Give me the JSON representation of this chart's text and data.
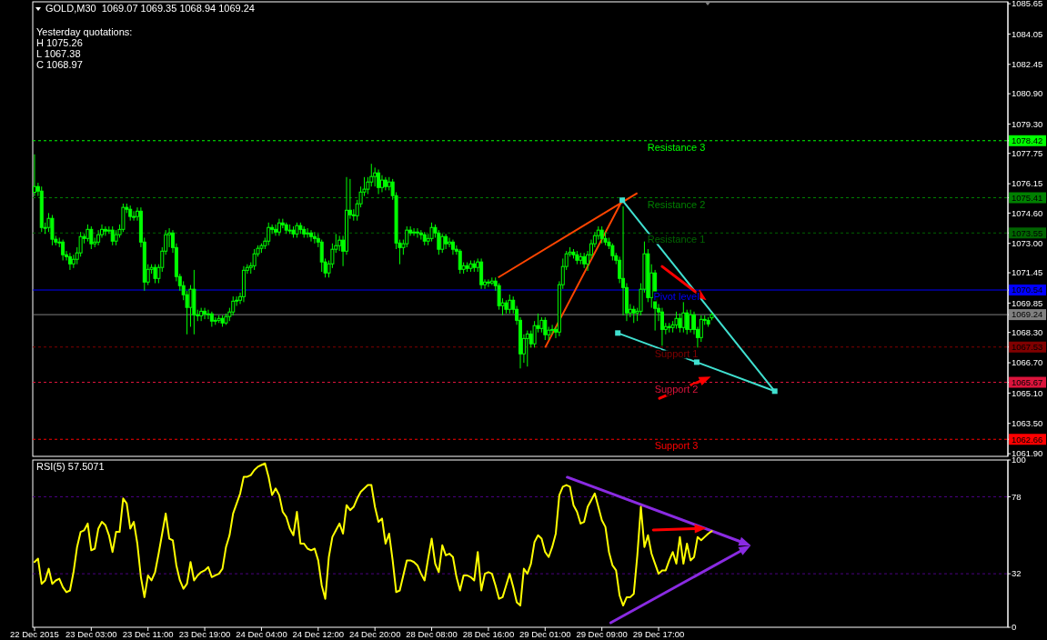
{
  "chart_data": [
    {
      "type": "candlestick",
      "title": "GOLD,M30  1069.07 1069.35 1068.94 1069.24",
      "annotations": [
        "Yesterday quotations:",
        "H 1075.26",
        "L 1067.38",
        "C 1068.97"
      ],
      "color": "#00ff00",
      "ylim": [
        1061.76,
        1085.75
      ],
      "tick_labels": "y",
      "categories": [
        null,
        null,
        null,
        null,
        null,
        null,
        null,
        null,
        null,
        null,
        null,
        null,
        null,
        null,
        null,
        null,
        null,
        null,
        null,
        null,
        null,
        null,
        null,
        null,
        null,
        null,
        null,
        null,
        null,
        null,
        null,
        null,
        null,
        null,
        null,
        null,
        null,
        null,
        null,
        null,
        null,
        null,
        null,
        null,
        null,
        null,
        null,
        null,
        null,
        null,
        null,
        null,
        null,
        null,
        null,
        null,
        null,
        null,
        null,
        null,
        null,
        null,
        null,
        null,
        null,
        null,
        null,
        null,
        null,
        null,
        null,
        null,
        null,
        null,
        null,
        null,
        null,
        null,
        null,
        null,
        null,
        null,
        null,
        null,
        null,
        null,
        null,
        null,
        null,
        null,
        null,
        null,
        null,
        null,
        null,
        null,
        null,
        null,
        null,
        null,
        null,
        null,
        null,
        null,
        null,
        null,
        null,
        null,
        null,
        null,
        null,
        null,
        null,
        null,
        null,
        null,
        null,
        null,
        null,
        null,
        null,
        null,
        null,
        null,
        null,
        null,
        null,
        null,
        null,
        null,
        null,
        null,
        null,
        null,
        null,
        null,
        null,
        null,
        null,
        null,
        null,
        null,
        null,
        null,
        null,
        null,
        null,
        null,
        null,
        null,
        null,
        null,
        null,
        null,
        null,
        null,
        null,
        null,
        null,
        null,
        null,
        null,
        null,
        null,
        null,
        null,
        null,
        null,
        null,
        null,
        null,
        null,
        null,
        null,
        null,
        null,
        null,
        null,
        null,
        null,
        null,
        null,
        null,
        null,
        null,
        null,
        null,
        null,
        null,
        null,
        null,
        null,
        null,
        null,
        null,
        null,
        null,
        null,
        null,
        null,
        null,
        null,
        null,
        null,
        null,
        null,
        null,
        null,
        null,
        null,
        null,
        null,
        null,
        null,
        null,
        null,
        null,
        null,
        null,
        null,
        null,
        null,
        null,
        null,
        null,
        null,
        null,
        null,
        null,
        null,
        null,
        null,
        null,
        null,
        null,
        null,
        null,
        null,
        null,
        null,
        null,
        null,
        null,
        null,
        null,
        null,
        null,
        null,
        null,
        null,
        null,
        null,
        null,
        null,
        null,
        null,
        null,
        null,
        null,
        null,
        null,
        null,
        null,
        null,
        null,
        null,
        null,
        null,
        null,
        null,
        null,
        null,
        null,
        null,
        null
      ],
      "yticks": [
        1085.65,
        1084.05,
        1082.45,
        {
          "value": 1080.9,
          "label": "1080.90"
        },
        {
          "value": 1079.3,
          "label": "1079.30"
        },
        1078.42,
        1077.75,
        1076.15,
        1075.41,
        {
          "value": 1074.6,
          "label": "1074.60"
        },
        1073.55,
        {
          "value": 1073,
          "label": "1073.00"
        },
        1071.45,
        1070.54,
        1069.85,
        1069.24,
        {
          "value": 1068.3,
          "label": "1068.30"
        },
        1067.53,
        {
          "value": 1066.7,
          "label": "1066.70"
        },
        1065.67,
        {
          "value": 1065.1,
          "label": "1065.10"
        },
        {
          "value": 1063.5,
          "label": "1063.50"
        },
        1062.66,
        {
          "value": 1061.9,
          "label": "1061.90"
        }
      ],
      "ohlc": [
        [
          1075.7,
          1077.7,
          1075.5,
          1076.0
        ],
        [
          1076.0,
          1076.2,
          1075.5,
          1075.76
        ],
        [
          1075.76,
          1076.0,
          1073.6,
          1073.84
        ],
        [
          1073.84,
          1074.1,
          1073.5,
          1073.84
        ],
        [
          1073.84,
          1074.6,
          1073.6,
          1074.32
        ],
        [
          1074.32,
          1074.5,
          1072.9,
          1073.22
        ],
        [
          1073.22,
          1073.4,
          1072.9,
          1073.07
        ],
        [
          1073.07,
          1073.3,
          1072.8,
          1073.07
        ],
        [
          1073.07,
          1073.2,
          1072.1,
          1072.4
        ],
        [
          1072.4,
          1072.6,
          1072.1,
          1072.3
        ],
        [
          1072.3,
          1072.5,
          1071.6,
          1071.92
        ],
        [
          1071.92,
          1072.4,
          1071.7,
          1072.16
        ],
        [
          1072.16,
          1072.8,
          1071.9,
          1072.5
        ],
        [
          1072.5,
          1073.6,
          1072.3,
          1073.36
        ],
        [
          1073.36,
          1073.5,
          1073.0,
          1073.26
        ],
        [
          1073.26,
          1074.0,
          1073.1,
          1073.74
        ],
        [
          1073.74,
          1073.9,
          1072.7,
          1072.98
        ],
        [
          1072.98,
          1073.3,
          1072.8,
          1073.07
        ],
        [
          1073.07,
          1073.7,
          1072.9,
          1073.46
        ],
        [
          1073.46,
          1074.0,
          1073.3,
          1073.74
        ],
        [
          1073.74,
          1073.9,
          1073.4,
          1073.65
        ],
        [
          1073.65,
          1073.9,
          1073.5,
          1073.7
        ],
        [
          1073.7,
          1073.9,
          1072.9,
          1073.12
        ],
        [
          1073.12,
          1073.7,
          1072.9,
          1073.46
        ],
        [
          1073.46,
          1074.0,
          1073.3,
          1073.74
        ],
        [
          1073.74,
          1075.1,
          1073.6,
          1074.9
        ],
        [
          1074.9,
          1075.1,
          1074.6,
          1074.8
        ],
        [
          1074.8,
          1075.0,
          1074.2,
          1074.42
        ],
        [
          1074.42,
          1074.7,
          1074.2,
          1074.42
        ],
        [
          1074.42,
          1074.9,
          1074.2,
          1074.7
        ],
        [
          1074.7,
          1074.9,
          1072.8,
          1073.07
        ],
        [
          1073.07,
          1073.3,
          1070.5,
          1070.96
        ],
        [
          1070.96,
          1071.9,
          1070.8,
          1071.63
        ],
        [
          1071.63,
          1071.9,
          1071.4,
          1071.73
        ],
        [
          1071.73,
          1071.9,
          1070.9,
          1071.15
        ],
        [
          1071.15,
          1071.9,
          1070.9,
          1071.73
        ],
        [
          1071.73,
          1072.8,
          1071.5,
          1072.59
        ],
        [
          1072.59,
          1073.7,
          1072.4,
          1073.46
        ],
        [
          1073.46,
          1073.8,
          1072.8,
          1073.55
        ],
        [
          1073.55,
          1073.7,
          1072.5,
          1072.78
        ],
        [
          1072.78,
          1073.0,
          1071.0,
          1071.25
        ],
        [
          1071.25,
          1071.4,
          1070.5,
          1070.77
        ],
        [
          1070.77,
          1071.0,
          1070.0,
          1070.29
        ],
        [
          1070.29,
          1070.5,
          1068.2,
          1069.62
        ],
        [
          1069.62,
          1070.8,
          1068.6,
          1070.58
        ],
        [
          1070.58,
          1071.6,
          1068.2,
          1069.23
        ],
        [
          1069.23,
          1069.5,
          1068.9,
          1069.18
        ],
        [
          1069.18,
          1069.6,
          1068.9,
          1069.42
        ],
        [
          1069.42,
          1069.6,
          1069.0,
          1069.28
        ],
        [
          1069.28,
          1069.5,
          1069.0,
          1069.28
        ],
        [
          1069.28,
          1069.4,
          1068.6,
          1068.9
        ],
        [
          1068.9,
          1069.1,
          1068.7,
          1068.94
        ],
        [
          1068.94,
          1069.2,
          1068.8,
          1069.04
        ],
        [
          1069.04,
          1069.2,
          1068.6,
          1068.8
        ],
        [
          1068.8,
          1069.3,
          1068.7,
          1069.14
        ],
        [
          1069.14,
          1069.6,
          1068.9,
          1069.38
        ],
        [
          1069.38,
          1070.2,
          1069.2,
          1069.95
        ],
        [
          1069.95,
          1070.2,
          1069.7,
          1070.0
        ],
        [
          1070.0,
          1070.4,
          1069.8,
          1070.19
        ],
        [
          1070.19,
          1071.8,
          1069.9,
          1071.58
        ],
        [
          1071.58,
          1071.9,
          1071.4,
          1071.73
        ],
        [
          1071.73,
          1072.0,
          1071.4,
          1071.82
        ],
        [
          1071.82,
          1072.7,
          1071.6,
          1072.45
        ],
        [
          1072.45,
          1072.9,
          1072.3,
          1072.74
        ],
        [
          1072.74,
          1073.0,
          1072.5,
          1072.88
        ],
        [
          1072.88,
          1073.3,
          1072.7,
          1073.12
        ],
        [
          1073.12,
          1074.1,
          1072.9,
          1073.84
        ],
        [
          1073.84,
          1074.0,
          1073.5,
          1073.74
        ],
        [
          1073.74,
          1074.0,
          1073.4,
          1073.6
        ],
        [
          1073.6,
          1074.3,
          1073.4,
          1074.08
        ],
        [
          1074.08,
          1074.3,
          1073.8,
          1073.98
        ],
        [
          1073.98,
          1074.1,
          1073.5,
          1073.7
        ],
        [
          1073.7,
          1074.0,
          1073.5,
          1073.7
        ],
        [
          1073.7,
          1073.9,
          1073.3,
          1073.5
        ],
        [
          1073.5,
          1074.1,
          1073.3,
          1073.94
        ],
        [
          1073.94,
          1074.1,
          1073.5,
          1073.74
        ],
        [
          1073.74,
          1073.9,
          1073.3,
          1073.5
        ],
        [
          1073.5,
          1073.8,
          1073.3,
          1073.55
        ],
        [
          1073.55,
          1073.7,
          1073.1,
          1073.36
        ],
        [
          1073.36,
          1073.6,
          1073.0,
          1073.26
        ],
        [
          1073.26,
          1073.5,
          1072.8,
          1073.07
        ],
        [
          1073.07,
          1073.2,
          1071.5,
          1072.02
        ],
        [
          1072.02,
          1072.2,
          1071.2,
          1071.44
        ],
        [
          1071.44,
          1072.1,
          1071.2,
          1071.92
        ],
        [
          1071.92,
          1073.0,
          1071.7,
          1072.69
        ],
        [
          1072.69,
          1073.5,
          1072.5,
          1072.88
        ],
        [
          1072.88,
          1073.4,
          1072.6,
          1073.17
        ],
        [
          1073.17,
          1073.4,
          1071.8,
          1072.59
        ],
        [
          1072.59,
          1076.5,
          1072.4,
          1074.75
        ],
        [
          1074.75,
          1076.4,
          1074.3,
          1074.51
        ],
        [
          1074.51,
          1074.8,
          1074.2,
          1074.46
        ],
        [
          1074.46,
          1075.3,
          1074.2,
          1075.09
        ],
        [
          1075.09,
          1076.0,
          1074.9,
          1075.71
        ],
        [
          1075.71,
          1076.5,
          1075.5,
          1075.86
        ],
        [
          1075.86,
          1076.5,
          1075.6,
          1076.24
        ],
        [
          1076.24,
          1077.2,
          1076.0,
          1076.53
        ],
        [
          1076.53,
          1077.0,
          1076.0,
          1076.72
        ],
        [
          1076.72,
          1076.9,
          1075.6,
          1075.95
        ],
        [
          1075.95,
          1076.6,
          1075.7,
          1076.34
        ],
        [
          1076.34,
          1076.5,
          1075.8,
          1076.0
        ],
        [
          1076.0,
          1076.5,
          1075.8,
          1076.24
        ],
        [
          1076.24,
          1076.4,
          1075.3,
          1075.52
        ],
        [
          1075.52,
          1075.7,
          1072.7,
          1073.02
        ],
        [
          1073.02,
          1073.2,
          1071.9,
          1072.78
        ],
        [
          1072.78,
          1073.2,
          1072.4,
          1072.98
        ],
        [
          1072.98,
          1073.9,
          1072.8,
          1073.7
        ],
        [
          1073.7,
          1073.9,
          1073.4,
          1073.55
        ],
        [
          1073.55,
          1073.8,
          1073.4,
          1073.6
        ],
        [
          1073.6,
          1073.8,
          1073.3,
          1073.55
        ],
        [
          1073.55,
          1073.7,
          1073.2,
          1073.46
        ],
        [
          1073.46,
          1073.6,
          1072.9,
          1073.12
        ],
        [
          1073.12,
          1073.5,
          1072.9,
          1073.26
        ],
        [
          1073.26,
          1074.1,
          1073.1,
          1073.84
        ],
        [
          1073.84,
          1074.0,
          1073.3,
          1073.55
        ],
        [
          1073.55,
          1073.7,
          1072.4,
          1072.69
        ],
        [
          1072.69,
          1073.5,
          1072.5,
          1073.36
        ],
        [
          1073.36,
          1073.5,
          1072.7,
          1072.98
        ],
        [
          1072.98,
          1073.3,
          1072.8,
          1073.07
        ],
        [
          1073.07,
          1073.2,
          1072.4,
          1072.69
        ],
        [
          1072.69,
          1072.9,
          1072.4,
          1072.59
        ],
        [
          1072.59,
          1072.7,
          1071.4,
          1071.63
        ],
        [
          1071.63,
          1072.0,
          1071.4,
          1071.82
        ],
        [
          1071.82,
          1072.0,
          1071.5,
          1071.68
        ],
        [
          1071.68,
          1072.1,
          1071.5,
          1071.92
        ],
        [
          1071.92,
          1072.1,
          1071.5,
          1071.73
        ],
        [
          1071.73,
          1072.2,
          1071.5,
          1072.02
        ],
        [
          1072.02,
          1072.2,
          1070.6,
          1070.82
        ],
        [
          1070.82,
          1071.1,
          1070.6,
          1070.96
        ],
        [
          1070.96,
          1071.1,
          1070.7,
          1070.91
        ],
        [
          1070.91,
          1071.2,
          1070.8,
          1071.01
        ],
        [
          1071.01,
          1071.2,
          1070.5,
          1070.77
        ],
        [
          1070.77,
          1070.9,
          1069.5,
          1069.71
        ],
        [
          1069.71,
          1070.1,
          1069.2,
          1069.86
        ],
        [
          1069.86,
          1070.0,
          1069.3,
          1069.52
        ],
        [
          1069.52,
          1070.3,
          1069.3,
          1070.0
        ],
        [
          1070.0,
          1070.2,
          1069.3,
          1069.52
        ],
        [
          1069.52,
          1069.7,
          1068.7,
          1068.94
        ],
        [
          1068.94,
          1069.1,
          1066.4,
          1067.17
        ],
        [
          1067.17,
          1068.2,
          1066.7,
          1067.98
        ],
        [
          1067.98,
          1068.4,
          1066.5,
          1068.22
        ],
        [
          1068.22,
          1068.4,
          1067.5,
          1067.7
        ],
        [
          1067.7,
          1068.9,
          1067.5,
          1068.66
        ],
        [
          1068.66,
          1069.3,
          1068.3,
          1068.51
        ],
        [
          1068.51,
          1069.1,
          1068.3,
          1068.94
        ],
        [
          1068.94,
          1069.1,
          1067.9,
          1068.18
        ],
        [
          1068.18,
          1068.6,
          1067.9,
          1068.42
        ],
        [
          1068.42,
          1068.7,
          1068.2,
          1068.46
        ],
        [
          1068.46,
          1068.6,
          1068.0,
          1068.32
        ],
        [
          1068.32,
          1071.0,
          1068.1,
          1070.82
        ],
        [
          1070.82,
          1072.2,
          1070.6,
          1071.78
        ],
        [
          1071.78,
          1072.6,
          1071.6,
          1072.45
        ],
        [
          1072.45,
          1072.8,
          1072.3,
          1072.54
        ],
        [
          1072.54,
          1072.7,
          1072.2,
          1072.4
        ],
        [
          1072.4,
          1072.6,
          1071.9,
          1072.11
        ],
        [
          1072.11,
          1072.5,
          1071.9,
          1072.3
        ],
        [
          1072.3,
          1072.5,
          1071.7,
          1071.92
        ],
        [
          1071.92,
          1072.6,
          1071.55,
          1072.4
        ],
        [
          1072.4,
          1073.2,
          1072.2,
          1072.98
        ],
        [
          1072.98,
          1073.6,
          1072.8,
          1073.41
        ],
        [
          1073.41,
          1073.9,
          1073.2,
          1073.7
        ],
        [
          1073.7,
          1073.9,
          1073.0,
          1073.26
        ],
        [
          1073.26,
          1073.6,
          1072.9,
          1073.07
        ],
        [
          1073.07,
          1073.3,
          1072.7,
          1072.88
        ],
        [
          1072.88,
          1073.0,
          1072.1,
          1072.35
        ],
        [
          1072.35,
          1072.5,
          1071.9,
          1072.11
        ],
        [
          1072.11,
          1072.3,
          1070.9,
          1071.15
        ],
        [
          1071.15,
          1074.95,
          1069.2,
          1070.67
        ],
        [
          1070.67,
          1070.9,
          1068.9,
          1069.33
        ],
        [
          1069.33,
          1069.8,
          1069.1,
          1069.52
        ],
        [
          1069.52,
          1069.7,
          1068.8,
          1069.33
        ],
        [
          1069.33,
          1069.6,
          1068.9,
          1069.42
        ],
        [
          1069.42,
          1070.9,
          1069.2,
          1070.58
        ],
        [
          1070.58,
          1073.1,
          1070.4,
          1072.45
        ],
        [
          1072.45,
          1072.7,
          1069.9,
          1070.14
        ],
        [
          1070.14,
          1071.9,
          1069.6,
          1071.44
        ],
        [
          1071.44,
          1071.6,
          1068.4,
          1069.57
        ],
        [
          1069.57,
          1069.8,
          1068.9,
          1069.38
        ],
        [
          1069.38,
          1069.6,
          1067.6,
          1068.46
        ],
        [
          1068.46,
          1068.8,
          1068.2,
          1068.61
        ],
        [
          1068.61,
          1068.8,
          1068.3,
          1068.56
        ],
        [
          1068.56,
          1068.9,
          1068.3,
          1068.7
        ],
        [
          1068.7,
          1069.4,
          1068.5,
          1069.04
        ],
        [
          1069.04,
          1069.3,
          1068.3,
          1068.56
        ],
        [
          1068.56,
          1069.9,
          1068.3,
          1069.33
        ],
        [
          1069.33,
          1069.5,
          1068.2,
          1068.46
        ],
        [
          1068.46,
          1069.5,
          1068.3,
          1069.23
        ],
        [
          1069.23,
          1069.4,
          1068.2,
          1068.46
        ],
        [
          1068.46,
          1068.6,
          1067.5,
          1068.03
        ],
        [
          1068.03,
          1069.2,
          1067.8,
          1068.99
        ],
        [
          1068.99,
          1069.2,
          1068.7,
          1068.94
        ],
        [
          1068.94,
          1069.1,
          1068.6,
          1068.75
        ],
        [
          1069.07,
          1069.35,
          1068.94,
          1069.24
        ],
        null,
        null,
        null,
        null,
        null,
        null,
        null,
        null,
        null,
        null,
        null,
        null,
        null,
        null,
        null,
        null,
        null,
        null,
        null,
        null,
        null,
        null,
        null,
        null,
        null,
        null,
        null,
        null,
        null,
        null,
        null,
        null,
        null,
        null,
        null,
        null,
        null,
        null,
        null,
        null,
        null,
        null,
        null,
        null,
        null,
        null,
        null,
        null,
        null,
        null,
        null,
        null,
        null,
        null,
        null,
        null,
        null,
        null,
        null,
        null,
        null,
        null,
        null,
        null,
        null,
        null,
        null,
        null,
        null,
        null,
        null,
        null,
        null,
        null,
        null,
        null,
        null,
        null,
        null,
        null,
        null,
        null,
        null
      ],
      "ref_lines": [
        {
          "axis": "y",
          "value": 1078.42,
          "label": "Resistance 3",
          "color": "#00ff00",
          "line_style": "dashed"
        },
        {
          "axis": "y",
          "value": 1075.41,
          "label": "Resistance 2",
          "color": "#008000",
          "line_style": "dashed"
        },
        {
          "axis": "y",
          "value": 1073.55,
          "label": "Resistance 1",
          "color": "#006400",
          "line_style": "dashed"
        },
        {
          "axis": "y",
          "value": 1070.54,
          "label": "Pivot level",
          "color": "#0000ff",
          "line_style": "solid"
        },
        {
          "axis": "y",
          "value": 1069.24,
          "label": null,
          "color": "#808080",
          "line_style": "solid"
        },
        {
          "axis": "y",
          "value": 1067.53,
          "label": "Support 1",
          "color": "#800000",
          "line_style": "dashed"
        },
        {
          "axis": "y",
          "value": 1065.67,
          "label": "Support 2",
          "color": "#dc143c",
          "line_style": "dashed"
        },
        {
          "axis": "y",
          "value": 1062.66,
          "label": "Support 3",
          "color": "#ff0000",
          "line_style": "dashed"
        }
      ]
    },
    {
      "type": "line",
      "title": "RSI(5) 57.5071",
      "ylim": [
        0,
        100
      ],
      "yticks": [
        0,
        32,
        78,
        100
      ],
      "categories": [
        "22 Dec 2015",
        null,
        null,
        null,
        null,
        null,
        null,
        null,
        null,
        null,
        null,
        null,
        null,
        null,
        null,
        null,
        "23 Dec 03:00",
        null,
        null,
        null,
        null,
        null,
        null,
        null,
        null,
        null,
        null,
        null,
        null,
        null,
        null,
        null,
        "23 Dec 11:00",
        null,
        null,
        null,
        null,
        null,
        null,
        null,
        null,
        null,
        null,
        null,
        null,
        null,
        null,
        null,
        "23 Dec 19:00",
        null,
        null,
        null,
        null,
        null,
        null,
        null,
        null,
        null,
        null,
        null,
        null,
        null,
        null,
        null,
        "24 Dec 04:00",
        null,
        null,
        null,
        null,
        null,
        null,
        null,
        null,
        null,
        null,
        null,
        null,
        null,
        null,
        null,
        "24 Dec 12:00",
        null,
        null,
        null,
        null,
        null,
        null,
        null,
        null,
        null,
        null,
        null,
        null,
        null,
        null,
        null,
        "24 Dec 20:00",
        null,
        null,
        null,
        null,
        null,
        null,
        null,
        null,
        null,
        null,
        null,
        null,
        null,
        null,
        null,
        "28 Dec 08:00",
        null,
        null,
        null,
        null,
        null,
        null,
        null,
        null,
        null,
        null,
        null,
        null,
        null,
        null,
        null,
        "28 Dec 16:00",
        null,
        null,
        null,
        null,
        null,
        null,
        null,
        null,
        null,
        null,
        null,
        null,
        null,
        null,
        null,
        "29 Dec 01:00",
        null,
        null,
        null,
        null,
        null,
        null,
        null,
        null,
        null,
        null,
        null,
        null,
        null,
        null,
        null,
        "29 Dec 09:00",
        null,
        null,
        null,
        null,
        null,
        null,
        null,
        null,
        null,
        null,
        null,
        null,
        null,
        null,
        null,
        "29 Dec 17:00",
        null,
        null,
        null,
        null,
        null,
        null,
        null,
        null,
        null,
        null,
        null,
        null,
        null,
        null,
        null,
        null,
        null,
        null,
        null,
        null,
        null,
        null,
        null,
        null,
        null,
        null,
        null,
        null,
        null,
        null,
        null,
        null,
        null,
        null,
        null,
        null,
        null,
        null,
        null,
        null,
        null,
        null,
        null,
        null,
        null,
        null,
        null,
        null,
        null,
        null,
        null,
        null,
        null,
        null,
        null,
        null,
        null,
        null,
        null,
        null,
        null,
        null,
        null,
        null,
        null,
        null,
        null,
        null,
        null,
        null,
        null,
        null,
        null,
        null,
        null,
        null,
        null,
        null,
        null,
        null,
        null,
        null,
        null,
        null,
        null,
        null,
        null,
        null,
        null,
        null,
        null,
        null,
        null,
        null,
        null,
        null,
        null,
        null
      ],
      "ref_lines": [
        {
          "axis": "y",
          "value": 78,
          "color": "#4b0082",
          "line_style": "dashed"
        },
        {
          "axis": "y",
          "value": 32,
          "color": "#4b0082",
          "line_style": "dashed"
        }
      ],
      "series": [
        {
          "color": "#ffff00",
          "values": [
            39,
            41,
            26,
            28,
            35,
            26,
            28,
            29,
            24,
            21,
            22,
            33,
            48,
            57,
            58,
            62,
            46,
            47,
            59,
            63,
            61,
            55,
            45,
            57,
            57,
            77,
            74,
            59,
            63,
            50,
            30,
            18,
            31,
            28,
            33,
            44,
            56,
            68,
            53,
            52,
            37,
            28,
            23,
            26,
            39,
            28,
            31,
            33,
            34,
            36,
            30,
            31,
            32,
            35,
            48,
            55,
            68,
            74,
            80,
            90,
            90,
            91,
            94,
            96,
            97,
            98,
            90,
            79,
            83,
            79,
            69,
            66,
            59,
            55,
            69,
            50,
            50,
            47,
            46,
            47,
            40,
            25,
            17,
            42,
            54,
            58,
            62,
            56,
            73,
            70,
            72,
            77,
            81,
            83,
            85,
            85,
            72,
            63,
            65,
            50,
            56,
            40,
            21,
            22,
            31,
            40,
            40,
            39,
            37,
            32,
            28,
            41,
            53,
            38,
            33,
            49,
            43,
            44,
            42,
            30,
            22,
            31,
            31,
            30,
            28,
            45,
            22,
            32,
            33,
            32,
            25,
            17,
            18,
            25,
            32,
            24,
            15,
            13,
            35,
            32,
            38,
            51,
            55,
            53,
            45,
            42,
            48,
            56,
            79,
            84,
            85,
            84,
            73,
            69,
            62,
            63,
            72,
            76,
            80,
            72,
            64,
            60,
            45,
            37,
            34,
            19,
            13,
            18,
            18,
            20,
            43,
            72,
            48,
            55,
            44,
            38,
            32,
            34,
            34,
            40,
            45,
            38,
            54,
            38,
            50,
            40,
            42,
            54,
            52,
            54,
            56,
            57.5,
            null,
            null,
            null,
            null,
            null,
            null,
            null,
            null,
            null,
            null,
            null,
            null,
            null,
            null,
            null,
            null,
            null,
            null,
            null,
            null,
            null,
            null,
            null,
            null,
            null,
            null,
            null,
            null,
            null,
            null,
            null,
            null,
            null,
            null,
            null,
            null,
            null,
            null,
            null,
            null,
            null,
            null,
            null,
            null,
            null,
            null,
            null,
            null,
            null,
            null,
            null,
            null,
            null,
            null,
            null,
            null,
            null,
            null,
            null,
            null,
            null,
            null,
            null,
            null,
            null,
            null,
            null,
            null,
            null,
            null,
            null,
            null,
            null,
            null,
            null,
            null,
            null,
            null,
            null,
            null,
            null,
            null,
            null
          ]
        }
      ]
    }
  ]
}
